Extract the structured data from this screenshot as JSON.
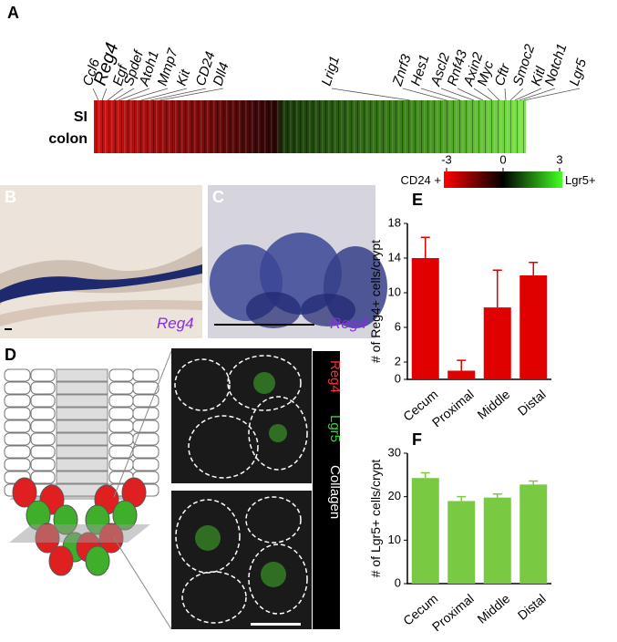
{
  "panels": {
    "a": "A",
    "b": "B",
    "c": "C",
    "d": "D",
    "e": "E",
    "f": "F"
  },
  "heatmap": {
    "genes": [
      "Ccl6",
      "Reg4",
      "Egf",
      "Spdef",
      "Atoh1",
      "Mmp7",
      "Kit",
      "CD24",
      "Dll4",
      "Lrig1",
      "Znrf3",
      "Hes1",
      "Ascl2",
      "Rnf43",
      "Axin2",
      "Myc",
      "Cftr",
      "Smoc2",
      "Kitl",
      "Notch1",
      "Lgr5"
    ],
    "rows": [
      "SI",
      "colon"
    ],
    "colorbar": {
      "left_label": "CD24 +",
      "right_label": "Lgr5+",
      "ticks": [
        -3,
        0,
        3
      ]
    }
  },
  "micrographs": {
    "b_label": "Reg4",
    "c_label": "Reg4"
  },
  "stain_legend": [
    "Reg4",
    "Lgr5",
    "Collagen"
  ],
  "chart_data": [
    {
      "type": "bar",
      "ylabel": "# of Reg4+ cells/crypt",
      "categories": [
        "Cecum",
        "Proximal",
        "Middle",
        "Distal"
      ],
      "values": [
        14,
        1,
        8.3,
        12
      ],
      "errors": [
        2.4,
        1.2,
        4.3,
        1.5
      ],
      "color": "#e00000",
      "ylim": [
        0,
        18
      ],
      "yticks": [
        0,
        2,
        6,
        10,
        14,
        18
      ]
    },
    {
      "type": "bar",
      "ylabel": "# of Lgr5+ cells/crypt",
      "categories": [
        "Cecum",
        "Proximal",
        "Middle",
        "Distal"
      ],
      "values": [
        24.3,
        19,
        19.8,
        22.8
      ],
      "errors": [
        1.2,
        1,
        0.8,
        0.8
      ],
      "color": "#7ac943",
      "ylim": [
        0,
        30
      ],
      "yticks": [
        0,
        10,
        20,
        30
      ]
    }
  ]
}
